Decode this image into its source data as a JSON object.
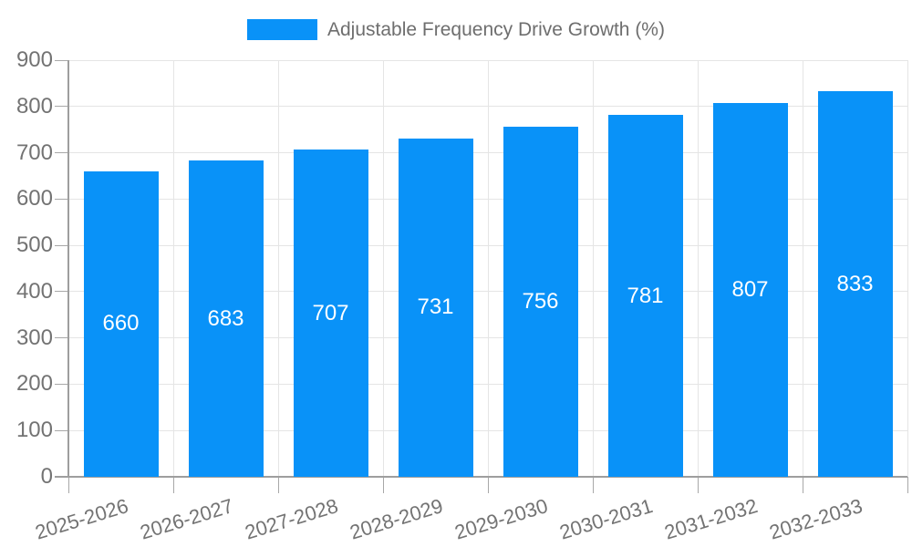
{
  "chart_data": {
    "type": "bar",
    "title": "Adjustable Frequency Drive Growth (%)",
    "categories": [
      "2025-2026",
      "2026-2027",
      "2027-2028",
      "2028-2029",
      "2029-2030",
      "2030-2031",
      "2031-2032",
      "2032-2033"
    ],
    "values": [
      660,
      683,
      707,
      731,
      756,
      781,
      807,
      833
    ],
    "xlabel": "",
    "ylabel": "",
    "ylim": [
      0,
      900
    ],
    "yticks": [
      0,
      100,
      200,
      300,
      400,
      500,
      600,
      700,
      800,
      900
    ],
    "grid": true,
    "legend_position": "top-center",
    "value_labels": "inside-center-white",
    "colors": {
      "bar": "#0992f8",
      "grid": "#e5e5e5",
      "axis": "#9e9e9e",
      "tick": "#a8a8a8",
      "tick_label": "#737373",
      "legend_text": "#6e6e6e",
      "value_label": "#ffffff",
      "background": "#ffffff"
    }
  }
}
